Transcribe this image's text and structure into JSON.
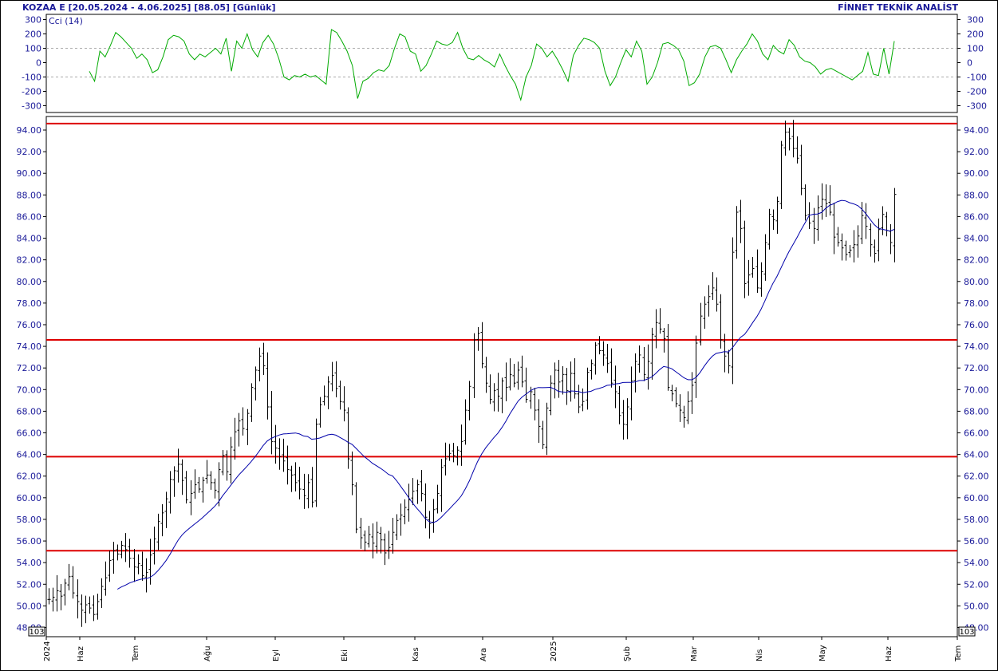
{
  "header": {
    "title": "KOZAA E  [20.05.2024 - 4.06.2025]  [88.05]  [Günlük]",
    "source": "FİNNET TEKNİK ANALİST"
  },
  "chart_data": [
    {
      "type": "line",
      "title": "Cci (14)",
      "ylim": [
        -300,
        300
      ],
      "yticks": [
        300,
        200,
        100,
        0,
        -100,
        -200,
        -300
      ],
      "grid_dashed": [
        100,
        -100
      ],
      "color": "#00aa00",
      "series": [
        {
          "name": "Cci (14)",
          "x_px_note": "",
          "values": [
            -60,
            -130,
            80,
            40,
            120,
            210,
            180,
            140,
            100,
            30,
            60,
            20,
            -70,
            -50,
            40,
            160,
            190,
            180,
            150,
            60,
            20,
            60,
            40,
            70,
            100,
            60,
            170,
            -60,
            150,
            100,
            200,
            90,
            40,
            140,
            190,
            130,
            30,
            -100,
            -120,
            -90,
            -100,
            -80,
            -100,
            -90,
            -120,
            -150,
            230,
            210,
            150,
            80,
            -20,
            -250,
            -130,
            -110,
            -70,
            -50,
            -60,
            -20,
            100,
            200,
            180,
            80,
            60,
            -60,
            -20,
            60,
            150,
            130,
            120,
            140,
            210,
            100,
            30,
            20,
            50,
            20,
            0,
            -30,
            60,
            -20,
            -90,
            -150,
            -260,
            -100,
            -20,
            130,
            100,
            40,
            80,
            20,
            -50,
            -130,
            50,
            120,
            170,
            160,
            140,
            100,
            -60,
            -160,
            -100,
            0,
            90,
            40,
            150,
            80,
            -150,
            -100,
            0,
            130,
            140,
            120,
            90,
            10,
            -160,
            -140,
            -80,
            40,
            110,
            120,
            100,
            20,
            -70,
            20,
            80,
            130,
            200,
            150,
            60,
            20,
            120,
            80,
            60,
            160,
            120,
            40,
            10,
            0,
            -30,
            -80,
            -50,
            -40,
            -60,
            -80,
            -100,
            -120,
            -90,
            -60,
            70,
            -80,
            -90,
            100,
            -80,
            150
          ]
        }
      ]
    },
    {
      "type": "ohlc",
      "title": "",
      "ylim": [
        48,
        95.5
      ],
      "yticks": [
        94,
        92,
        90,
        88,
        86,
        84,
        82,
        80,
        78,
        76,
        74,
        72,
        70,
        68,
        66,
        64,
        62,
        60,
        58,
        56,
        54,
        52,
        50,
        48
      ],
      "x_labels": [
        "2024",
        "Haz",
        "Tem",
        "Ağu",
        "Eyl",
        "Eki",
        "Kas",
        "Ara",
        "2025",
        "Şub",
        "Mar",
        "Nis",
        "May",
        "Haz",
        "Tem"
      ],
      "scale_badge": "10^3",
      "horizontal_lines": [
        94.6,
        74.6,
        63.8,
        55.1
      ],
      "horizontal_line_color": "#dd0000",
      "moving_average_color": "#0000aa",
      "last_value": 88.05,
      "closes": [
        50.6,
        50.8,
        51.4,
        50.9,
        52.1,
        52.7,
        51.2,
        50.4,
        49.6,
        50.1,
        49.8,
        49.2,
        50.4,
        51.8,
        52.6,
        54.2,
        55.1,
        54.8,
        55.6,
        55.2,
        54.4,
        53.6,
        53.9,
        52.8,
        53.1,
        54.7,
        56.2,
        57.8,
        58.6,
        59.9,
        61.7,
        62.5,
        63.1,
        61.6,
        59.8,
        60.4,
        61.2,
        60.8,
        61.6,
        62.1,
        61.4,
        60.7,
        62.6,
        63.9,
        62.4,
        64.7,
        66.1,
        67.1,
        66.4,
        67.8,
        70.2,
        71.8,
        73.1,
        72.2,
        68.4,
        65.2,
        64.6,
        63.8,
        63.4,
        62.6,
        62.1,
        61.4,
        60.8,
        60.2,
        61.4,
        59.6,
        66.8,
        68.6,
        69.4,
        70.7,
        71.3,
        70.1,
        68.9,
        68.1,
        63.6,
        61.2,
        57.1,
        56.3,
        55.9,
        56.6,
        55.8,
        56.8,
        56.1,
        54.9,
        55.4,
        56.8,
        57.9,
        58.4,
        59.1,
        59.8,
        60.6,
        61.2,
        60.4,
        58.2,
        57.6,
        58.9,
        60.4,
        62.8,
        63.6,
        64.1,
        63.9,
        64.4,
        65.2,
        68.1,
        70.3,
        74.6,
        75.2,
        72.4,
        70.6,
        69.1,
        69.9,
        69.4,
        70.8,
        70.2,
        71.4,
        70.6,
        71.8,
        70.7,
        69.1,
        69.8,
        68.1,
        66.6,
        64.9,
        68.3,
        70.6,
        71.8,
        70.7,
        71.4,
        69.9,
        71.5,
        69.6,
        68.4,
        68.9,
        71.6,
        72.4,
        74.1,
        73.6,
        73.2,
        72.4,
        70.6,
        69.8,
        67.6,
        66.8,
        68.4,
        70.8,
        72.6,
        73.2,
        71.4,
        72.6,
        75.1,
        76.2,
        75.6,
        74.7,
        70.2,
        69.6,
        68.7,
        68.1,
        67.4,
        68.9,
        70.4,
        74.3,
        76.8,
        77.9,
        78.6,
        79.4,
        77.9,
        74.6,
        73.1,
        72.2,
        82.7,
        86.4,
        84.9,
        79.8,
        80.6,
        81.2,
        79.4,
        80.9,
        83.6,
        86.2,
        85.7,
        87.4,
        92.6,
        93.8,
        93.2,
        92.3,
        91.4,
        88.6,
        86.1,
        85.4,
        84.9,
        86.8,
        87.6,
        87.2,
        86.4,
        84.1,
        83.6,
        83.1,
        82.5,
        82.9,
        83.4,
        84.2,
        86.1,
        85.1,
        83.4,
        82.6,
        84.8,
        86.2,
        84.7,
        83.6,
        88.05
      ]
    }
  ]
}
